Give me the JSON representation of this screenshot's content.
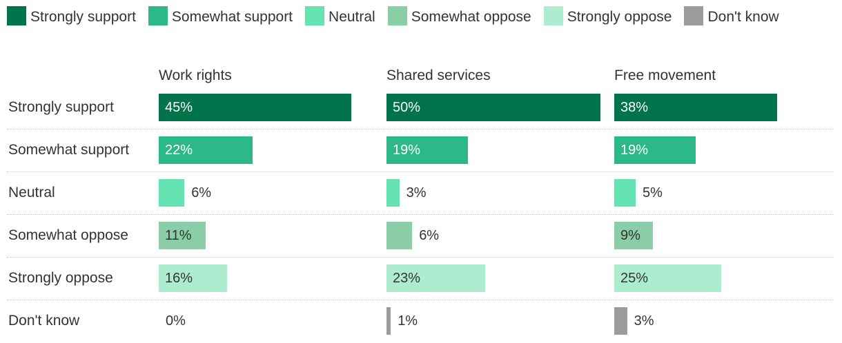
{
  "chart_data": {
    "type": "bar",
    "orientation": "horizontal",
    "layout": "small-multiples",
    "legend": [
      "Strongly support",
      "Somewhat support",
      "Neutral",
      "Somewhat oppose",
      "Strongly oppose",
      "Don't know"
    ],
    "colors": [
      "#00734a",
      "#2db889",
      "#66e3b2",
      "#8acda6",
      "#aeecd1",
      "#9b9b9b"
    ],
    "label_colors": [
      "#ffffff",
      "#ffffff",
      "#333333",
      "#333333",
      "#333333",
      "#333333"
    ],
    "categories": [
      "Strongly support",
      "Somewhat support",
      "Neutral",
      "Somewhat oppose",
      "Strongly oppose",
      "Don't know"
    ],
    "value_suffix": "%",
    "xlim": [
      0,
      50
    ],
    "series": [
      {
        "name": "Work rights",
        "values": [
          45,
          22,
          6,
          11,
          16,
          0
        ]
      },
      {
        "name": "Shared services",
        "values": [
          50,
          19,
          3,
          6,
          23,
          1
        ]
      },
      {
        "name": "Free movement",
        "values": [
          38,
          19,
          5,
          9,
          25,
          3
        ]
      }
    ]
  }
}
